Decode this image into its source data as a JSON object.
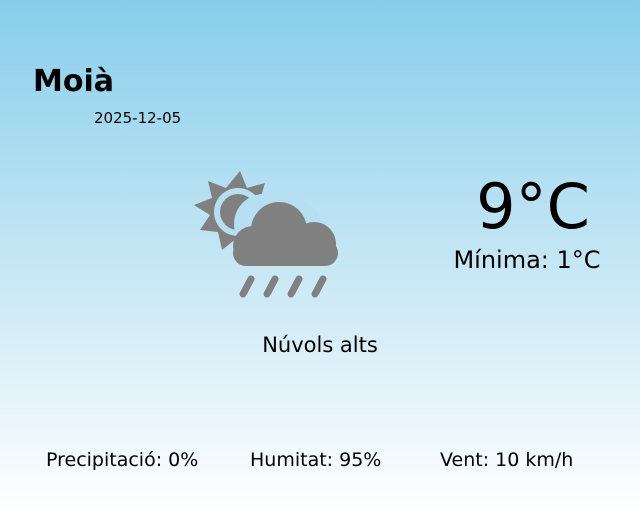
{
  "location": {
    "city": "Moià",
    "date": "2025-12-05"
  },
  "weather": {
    "icon": "partly-sunny-rain-icon",
    "temperature": "9°C",
    "minimum": "Mínima: 1°C",
    "condition": "Núvols alts",
    "icon_color": "#808080"
  },
  "stats": {
    "precipitation": "Precipitació: 0%",
    "humidity": "Humitat: 95%",
    "wind": "Vent: 10 km/h"
  }
}
